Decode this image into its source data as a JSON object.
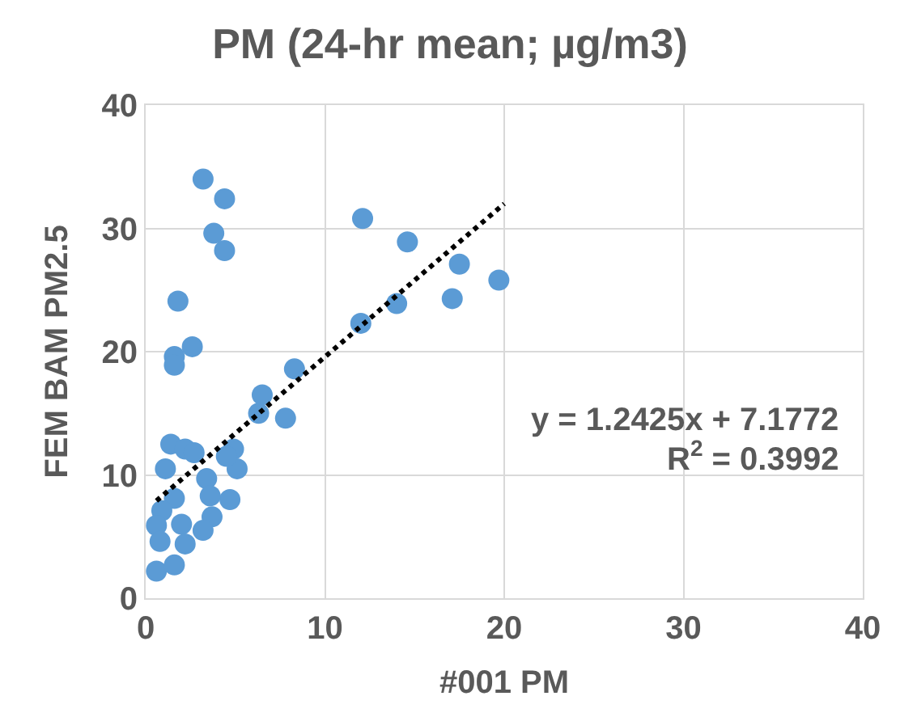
{
  "chart_data": {
    "type": "scatter",
    "title": "PM (24-hr mean; µg/m3)",
    "xlabel": "#001 PM",
    "ylabel": "FEM BAM PM2.5",
    "xlim": [
      0,
      40
    ],
    "xticks": [
      0,
      10,
      20,
      30,
      40
    ],
    "ylim": [
      0,
      40
    ],
    "yticks": [
      0,
      10,
      20,
      30,
      40
    ],
    "grid": true,
    "series": [
      {
        "marker": "circle",
        "color": "#5b9bd5",
        "x": [
          3.2,
          4.4,
          3.8,
          4.4,
          1.8,
          1.6,
          1.6,
          2.6,
          12.1,
          14.6,
          17.5,
          19.7,
          17.1,
          14.0,
          12.0,
          8.3,
          7.8,
          6.5,
          6.3,
          4.9,
          5.1,
          4.5,
          1.4,
          2.2,
          2.7,
          1.1,
          3.4,
          4.7,
          3.6,
          1.6,
          3.7,
          3.2,
          0.9,
          0.6,
          2.0,
          2.2,
          0.8,
          0.6,
          1.6
        ],
        "values": [
          34.0,
          32.4,
          29.6,
          28.2,
          24.1,
          19.6,
          18.9,
          20.4,
          30.8,
          28.9,
          27.1,
          25.8,
          24.3,
          23.9,
          22.3,
          18.6,
          14.6,
          16.5,
          15.0,
          12.1,
          10.5,
          11.5,
          12.5,
          12.1,
          11.8,
          10.5,
          9.7,
          8.0,
          8.3,
          8.1,
          6.6,
          5.5,
          7.1,
          5.9,
          6.0,
          4.4,
          4.6,
          2.2,
          2.7
        ]
      },
      {
        "type": "line",
        "color": "#000000",
        "line_style": "dotted",
        "x": [
          0.6,
          20
        ],
        "values": [
          7.9,
          32.0
        ]
      }
    ],
    "annotations": [
      "y = 1.2425x + 7.1772",
      "R$^{2}$ = 0.3992"
    ]
  }
}
